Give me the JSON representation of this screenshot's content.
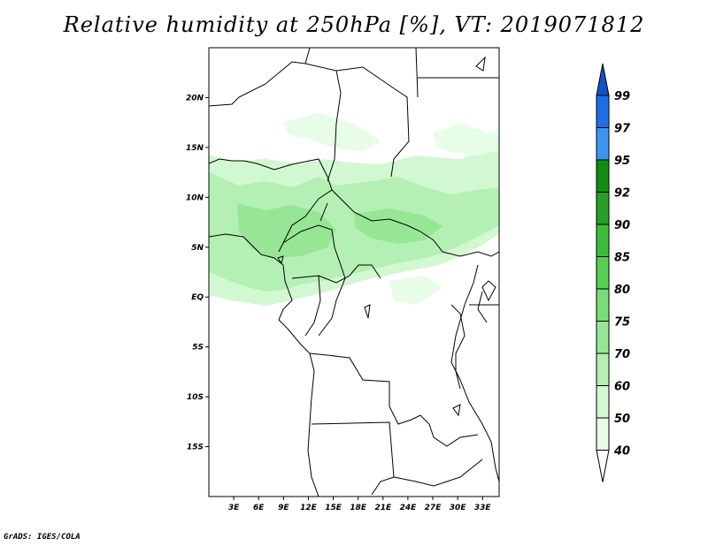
{
  "title": "Relative humidity at 250hPa [%], VT: 2019071812",
  "credit": "GrADS: IGES/COLA",
  "map": {
    "region": "Central Africa",
    "variable": "Relative humidity",
    "level": "250hPa",
    "unit": "%",
    "valid_time": "2019071812",
    "lon_range": [
      0,
      35
    ],
    "lat_range": [
      -20,
      25
    ],
    "lon_ticks": [
      {
        "value": 3,
        "label": "3E"
      },
      {
        "value": 6,
        "label": "6E"
      },
      {
        "value": 9,
        "label": "9E"
      },
      {
        "value": 12,
        "label": "12E"
      },
      {
        "value": 15,
        "label": "15E"
      },
      {
        "value": 18,
        "label": "18E"
      },
      {
        "value": 21,
        "label": "21E"
      },
      {
        "value": 24,
        "label": "24E"
      },
      {
        "value": 27,
        "label": "27E"
      },
      {
        "value": 30,
        "label": "30E"
      },
      {
        "value": 33,
        "label": "33E"
      }
    ],
    "lat_ticks": [
      {
        "value": 20,
        "label": "20N"
      },
      {
        "value": 15,
        "label": "15N"
      },
      {
        "value": 10,
        "label": "10N"
      },
      {
        "value": 5,
        "label": "5N"
      },
      {
        "value": 0,
        "label": "EQ"
      },
      {
        "value": -5,
        "label": "5S"
      },
      {
        "value": -10,
        "label": "10S"
      },
      {
        "value": -15,
        "label": "15S"
      }
    ]
  },
  "colorbar": {
    "levels": [
      {
        "label": "40",
        "color": "#ffffff"
      },
      {
        "label": "50",
        "color": "#e8fde8"
      },
      {
        "label": "60",
        "color": "#d2f8d2"
      },
      {
        "label": "70",
        "color": "#b4f0b4"
      },
      {
        "label": "75",
        "color": "#96e696"
      },
      {
        "label": "80",
        "color": "#78dc78"
      },
      {
        "label": "85",
        "color": "#55d055"
      },
      {
        "label": "90",
        "color": "#3cbe3c"
      },
      {
        "label": "92",
        "color": "#28a028"
      },
      {
        "label": "95",
        "color": "#148c14"
      },
      {
        "label": "97",
        "color": "#3c96f0"
      },
      {
        "label": "99",
        "color": "#1e6ee6"
      }
    ],
    "top_color": "#1450c8"
  }
}
